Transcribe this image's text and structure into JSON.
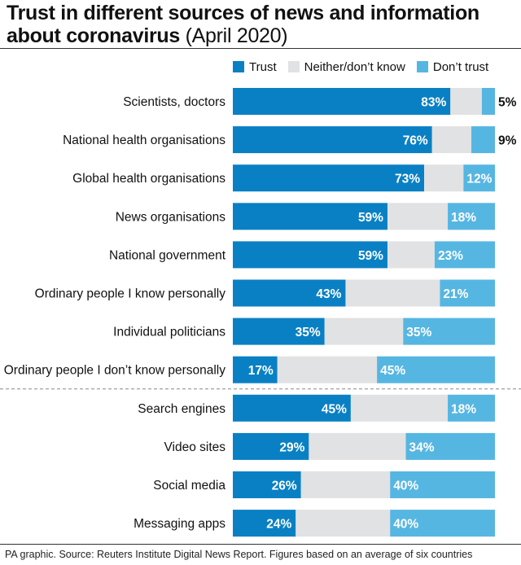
{
  "title": {
    "bold": "Trust in different sources of news and information about coronavirus",
    "light": "(April 2020)"
  },
  "legend": [
    {
      "label": "Trust",
      "color": "#0a80c4"
    },
    {
      "label": "Neither/don’t know",
      "color": "#e1e2e3"
    },
    {
      "label": "Don’t trust",
      "color": "#56b6e2"
    }
  ],
  "chart_data": {
    "type": "bar",
    "orientation": "horizontal",
    "stacked": true,
    "xlim": [
      0,
      100
    ],
    "categories": [
      "Scientists, doctors",
      "National health organisations",
      "Global health organisations",
      "News organisations",
      "National government",
      "Ordinary people I know personally",
      "Individual politicians",
      "Ordinary people I don’t know personally",
      "Search engines",
      "Video sites",
      "Social media",
      "Messaging apps"
    ],
    "series": [
      {
        "name": "Trust",
        "color": "#0a80c4",
        "values": [
          83,
          76,
          73,
          59,
          59,
          43,
          35,
          17,
          45,
          29,
          26,
          24
        ],
        "labels": [
          "83%",
          "76%",
          "73%",
          "59%",
          "59%",
          "43%",
          "35%",
          "17%",
          "45%",
          "29%",
          "26%",
          "24%"
        ]
      },
      {
        "name": "Neither/don’t know",
        "color": "#e1e2e3",
        "values": [
          12,
          15,
          15,
          23,
          18,
          36,
          30,
          38,
          37,
          37,
          34,
          36
        ]
      },
      {
        "name": "Don’t trust",
        "color": "#56b6e2",
        "values": [
          5,
          9,
          12,
          18,
          23,
          21,
          35,
          45,
          18,
          34,
          40,
          40
        ],
        "labels": [
          "5%",
          "9%",
          "12%",
          "18%",
          "23%",
          "21%",
          "35%",
          "45%",
          "18%",
          "34%",
          "40%",
          "40%"
        ]
      }
    ],
    "group_divider_after": "Ordinary people I don’t know personally"
  },
  "footer": "PA graphic. Source:  Reuters Institute Digital News Report. Figures based on an average of six countries"
}
